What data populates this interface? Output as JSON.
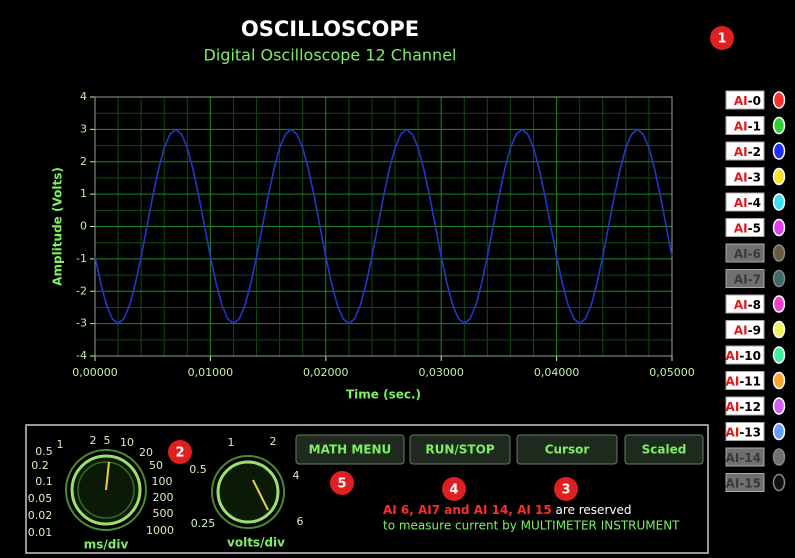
{
  "header": {
    "title": "OSCILLOSCOPE",
    "subtitle": "Digital Oscilloscope 12 Channel"
  },
  "chart_data": {
    "type": "line",
    "xlabel": "Time (sec.)",
    "ylabel": "Amplitude (Volts)",
    "color": "#2436c8",
    "x": [
      0,
      0.0005,
      0.001,
      0.0015,
      0.002,
      0.0025,
      0.003,
      0.0035,
      0.004,
      0.0045,
      0.005,
      0.0055,
      0.006,
      0.0065,
      0.007,
      0.0075,
      0.008,
      0.0085,
      0.009,
      0.0095,
      0.01,
      0.0105,
      0.011,
      0.0115,
      0.012,
      0.0125,
      0.013,
      0.0135,
      0.014,
      0.0145,
      0.015,
      0.0155,
      0.016,
      0.0165,
      0.017,
      0.0175,
      0.018,
      0.0185,
      0.019,
      0.0195,
      0.02,
      0.0205,
      0.021,
      0.0215,
      0.022,
      0.0225,
      0.023,
      0.0235,
      0.024,
      0.0245,
      0.025,
      0.0255,
      0.026,
      0.0265,
      0.027,
      0.0275,
      0.028,
      0.0285,
      0.029,
      0.0295,
      0.03,
      0.0305,
      0.031,
      0.0315,
      0.032,
      0.0325,
      0.033,
      0.0335,
      0.034,
      0.0345,
      0.035,
      0.0355,
      0.036,
      0.0365,
      0.037,
      0.0375,
      0.038,
      0.0385,
      0.039,
      0.0395,
      0.04,
      0.0405,
      0.041,
      0.0415,
      0.042,
      0.0425,
      0.043,
      0.0435,
      0.044,
      0.0445,
      0.045,
      0.0455,
      0.046,
      0.0465,
      0.047,
      0.0475,
      0.048,
      0.0485,
      0.049,
      0.0495,
      0.05
    ],
    "values": [
      -0.93,
      -1.76,
      -2.43,
      -2.85,
      -3,
      -2.85,
      -2.43,
      -1.76,
      -0.93,
      0,
      0.93,
      1.76,
      2.43,
      2.85,
      3,
      2.85,
      2.43,
      1.76,
      0.93,
      0,
      -0.93,
      -1.76,
      -2.43,
      -2.85,
      -3,
      -2.85,
      -2.43,
      -1.76,
      -0.93,
      0,
      0.93,
      1.76,
      2.43,
      2.85,
      3,
      2.85,
      2.43,
      1.76,
      0.93,
      0,
      -0.93,
      -1.76,
      -2.43,
      -2.85,
      -3,
      -2.85,
      -2.43,
      -1.76,
      -0.93,
      0,
      0.93,
      1.76,
      2.43,
      2.85,
      3,
      2.85,
      2.43,
      1.76,
      0.93,
      0,
      -0.93,
      -1.76,
      -2.43,
      -2.85,
      -3,
      -2.85,
      -2.43,
      -1.76,
      -0.93,
      0,
      0.93,
      1.76,
      2.43,
      2.85,
      3,
      2.85,
      2.43,
      1.76,
      0.93,
      0,
      -0.93,
      -1.76,
      -2.43,
      -2.85,
      -3,
      -2.85,
      -2.43,
      -1.76,
      -0.93,
      0,
      0.93,
      1.76,
      2.43,
      2.85,
      3,
      2.85,
      2.43,
      1.76,
      0.93,
      0,
      -0.93
    ],
    "xlim": [
      0,
      0.05
    ],
    "ylim": [
      -4,
      4
    ],
    "xticks": [
      {
        "value": 0,
        "label": "0,00000"
      },
      {
        "value": 0.01,
        "label": "0,01000"
      },
      {
        "value": 0.02,
        "label": "0,02000"
      },
      {
        "value": 0.03,
        "label": "0,03000"
      },
      {
        "value": 0.04,
        "label": "0,04000"
      },
      {
        "value": 0.05,
        "label": "0,05000"
      }
    ],
    "yticks": [
      -4,
      -3,
      -2,
      -1,
      0,
      1,
      2,
      3,
      4
    ],
    "grid": true
  },
  "channels": [
    {
      "prefix": "AI",
      "number": "-0",
      "led": "#ff3030",
      "reserved": false
    },
    {
      "prefix": "AI",
      "number": "-1",
      "led": "#30d030",
      "reserved": false
    },
    {
      "prefix": "AI",
      "number": "-2",
      "led": "#2030ff",
      "reserved": false
    },
    {
      "prefix": "AI",
      "number": "-3",
      "led": "#ffe030",
      "reserved": false
    },
    {
      "prefix": "AI",
      "number": "-4",
      "led": "#40e0f0",
      "reserved": false
    },
    {
      "prefix": "AI",
      "number": "-5",
      "led": "#e040f0",
      "reserved": false
    },
    {
      "prefix": "AI",
      "number": "-6",
      "led": "#6a5a40",
      "reserved": true
    },
    {
      "prefix": "AI",
      "number": "-7",
      "led": "#406a68",
      "reserved": true
    },
    {
      "prefix": "AI",
      "number": "-8",
      "led": "#f040d0",
      "reserved": false
    },
    {
      "prefix": "AI",
      "number": "-9",
      "led": "#f0f060",
      "reserved": false
    },
    {
      "prefix": "AI",
      "number": "-10",
      "led": "#40f0a0",
      "reserved": false
    },
    {
      "prefix": "AI",
      "number": "-11",
      "led": "#ffa030",
      "reserved": false
    },
    {
      "prefix": "AI",
      "number": "-12",
      "led": "#d060f0",
      "reserved": false
    },
    {
      "prefix": "AI",
      "number": "-13",
      "led": "#60a0ff",
      "reserved": false
    },
    {
      "prefix": "AI",
      "number": "-14",
      "led": "#707070",
      "reserved": true
    },
    {
      "prefix": "AI",
      "number": "-15",
      "led": "#101010",
      "reserved": true
    }
  ],
  "knobs": [
    {
      "unit": "ms/div",
      "scale": [
        "0.01",
        "0.02",
        "0.05",
        "0.1",
        "0.2",
        "0.5",
        "1",
        "2",
        "5",
        "10",
        "20",
        "50",
        "100",
        "200",
        "500",
        "1000"
      ]
    },
    {
      "unit": "volts/div",
      "scale": [
        "0.25",
        "0.5",
        "1",
        "2",
        "4",
        "6"
      ]
    }
  ],
  "buttons": [
    "MATH MENU",
    "RUN/STOP",
    "Cursor",
    "Scaled"
  ],
  "note": {
    "reserved_channels": "AI 6, AI7 and AI 14, AI 15",
    "line1_rest": "are reserved",
    "line2": "to measure current by MULTIMETER INSTRUMENT"
  },
  "badges": [
    "1",
    "2",
    "3",
    "4",
    "5"
  ]
}
